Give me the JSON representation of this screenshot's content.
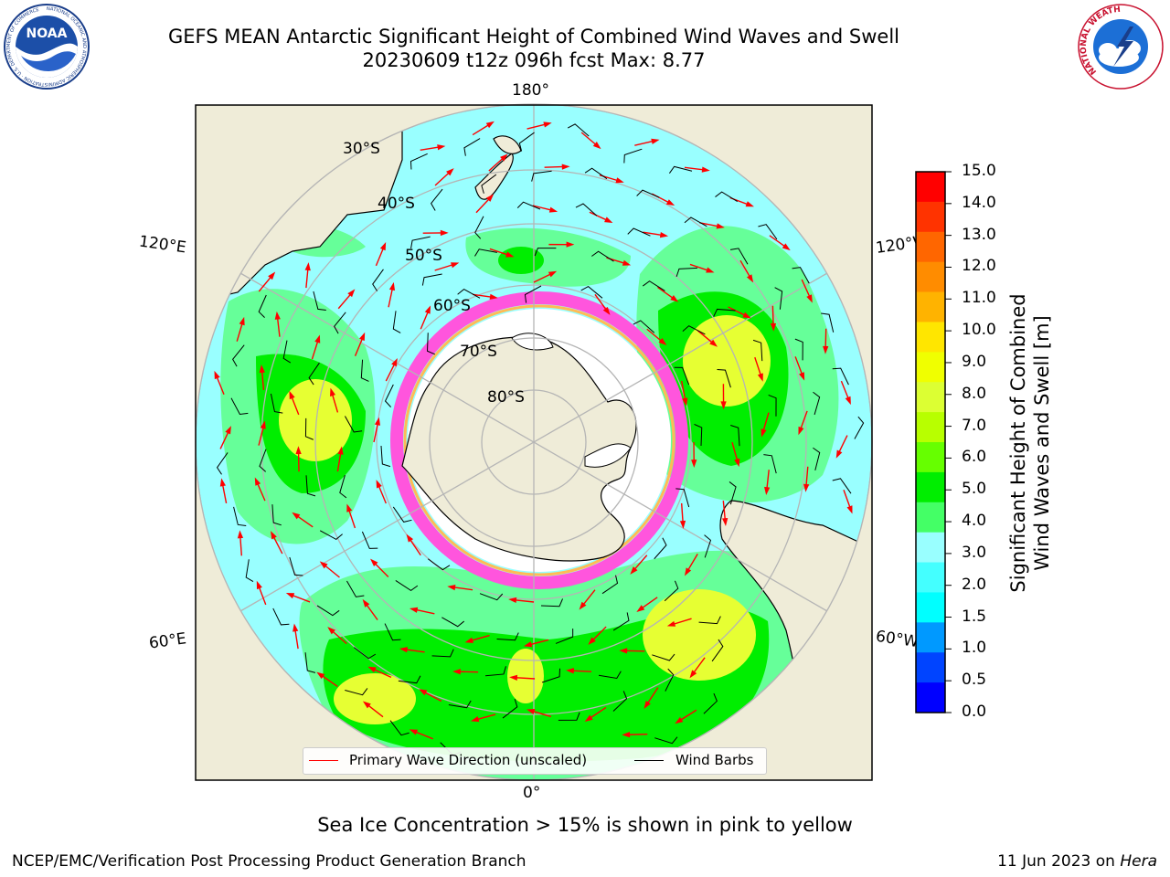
{
  "header": {
    "title_line1": "GEFS MEAN Antarctic Significant Height of Combined Wind Waves and Swell",
    "title_line2": "20230609 t12z 096h fcst   Max: 8.77"
  },
  "logos": {
    "noaa_text": "NOAA",
    "noaa_ring": "NATIONAL OCEANIC AND ATMOSPHERIC ADMINISTRATION · U.S. DEPARTMENT OF COMMERCE",
    "nws_ring": "NATIONAL WEATHER SERVICE"
  },
  "map": {
    "longitude_labels": {
      "top": "180°",
      "bottom": "0°",
      "upper_left": "120°E",
      "upper_right": "120°W",
      "lower_left": "60°E",
      "lower_right": "60°W"
    },
    "latitude_labels": [
      "30°S",
      "40°S",
      "50°S",
      "60°S",
      "70°S",
      "80°S"
    ],
    "colors": {
      "ocean_low": "#99ffff",
      "ocean_mid": "#66ff99",
      "ocean_high": "#00ee00",
      "peak": "#e6ff33",
      "land": "#efecd8",
      "ice": "#ff55dd",
      "grid": "#b5b5b5"
    }
  },
  "legend": {
    "wave_direction_label": "Primary Wave Direction (unscaled)",
    "wind_barbs_label": "Wind Barbs",
    "wave_color": "#ff0000",
    "barb_color": "#000000"
  },
  "colorbar": {
    "title_line1": "Significant Height of Combined",
    "title_line2": "Wind Waves and Swell [m]",
    "ticks": [
      "15.0",
      "14.0",
      "13.0",
      "12.0",
      "11.0",
      "10.0",
      "9.0",
      "8.0",
      "7.0",
      "6.0",
      "5.0",
      "4.0",
      "3.0",
      "2.0",
      "1.5",
      "1.0",
      "0.5",
      "0.0"
    ],
    "colors": [
      "#ff0000",
      "#ff3300",
      "#ff6600",
      "#ff8c00",
      "#ffb300",
      "#ffe600",
      "#f0ff00",
      "#dcff33",
      "#b8ff00",
      "#66ff00",
      "#00ee00",
      "#44ff66",
      "#99ffff",
      "#44ffff",
      "#00ffff",
      "#0099ff",
      "#0044ff",
      "#0000ff"
    ]
  },
  "caption": "Sea Ice Concentration > 15% is shown in pink to yellow",
  "footer": {
    "left": "NCEP/EMC/Verification Post Processing Product Generation Branch",
    "right_prefix": "11 Jun 2023 on ",
    "right_host": "Hera"
  }
}
